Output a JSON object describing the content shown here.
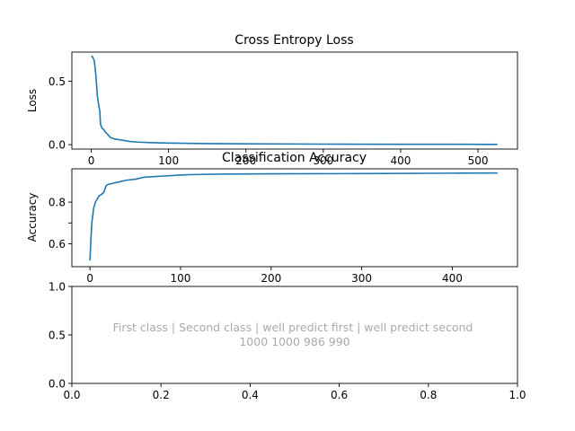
{
  "colors": {
    "line": "#1f77b4",
    "note": "#aaaaaa",
    "frame": "#000000"
  },
  "chart_data": [
    {
      "type": "line",
      "title": "Cross Entropy Loss",
      "xlabel": "",
      "ylabel": "Loss",
      "xlim": [
        -25,
        551
      ],
      "ylim": [
        -0.035,
        0.73
      ],
      "xticks": [
        0,
        100,
        200,
        300,
        400,
        500
      ],
      "yticks": [
        0.0,
        0.5
      ],
      "ytick_labels": [
        "0.0",
        "0.5"
      ],
      "grid": false,
      "series": [
        {
          "x": [
            0,
            2,
            4,
            6,
            8,
            10,
            11,
            12,
            14,
            16,
            18,
            20,
            25,
            30,
            35,
            40,
            45,
            50,
            60,
            80,
            100,
            150,
            200,
            300,
            400,
            525
          ],
          "y": [
            0.7,
            0.69,
            0.66,
            0.55,
            0.38,
            0.3,
            0.27,
            0.16,
            0.13,
            0.12,
            0.1,
            0.09,
            0.055,
            0.045,
            0.04,
            0.035,
            0.03,
            0.025,
            0.02,
            0.015,
            0.012,
            0.008,
            0.006,
            0.004,
            0.003,
            0.002
          ]
        }
      ]
    },
    {
      "type": "line",
      "title": "Classification Accuracy",
      "xlabel": "",
      "ylabel": "Accuracy",
      "xlim": [
        -20,
        472
      ],
      "ylim": [
        0.49,
        0.96
      ],
      "xticks": [
        0,
        100,
        200,
        300,
        400
      ],
      "yticks": [
        0.6,
        0.7,
        0.8
      ],
      "ytick_labels": [
        "0.6",
        "",
        "0.8"
      ],
      "grid": false,
      "series": [
        {
          "x": [
            0,
            1,
            2,
            4,
            6,
            8,
            10,
            12,
            15,
            18,
            20,
            25,
            30,
            40,
            50,
            55,
            60,
            80,
            100,
            110,
            150,
            200,
            300,
            400,
            450
          ],
          "y": [
            0.52,
            0.62,
            0.7,
            0.77,
            0.8,
            0.815,
            0.83,
            0.835,
            0.845,
            0.88,
            0.885,
            0.89,
            0.895,
            0.905,
            0.91,
            0.915,
            0.92,
            0.925,
            0.93,
            0.932,
            0.935,
            0.936,
            0.937,
            0.939,
            0.94
          ]
        }
      ]
    },
    {
      "type": "table",
      "title": "",
      "xlim": [
        0,
        1
      ],
      "ylim": [
        0,
        1
      ],
      "xticks": [
        0.0,
        0.2,
        0.4,
        0.6,
        0.8,
        1.0
      ],
      "xtick_labels": [
        "0.0",
        "0.2",
        "0.4",
        "0.6",
        "0.8",
        "1.0"
      ],
      "yticks": [
        0.0,
        0.5,
        1.0
      ],
      "ytick_labels": [
        "0.0",
        "0.5",
        "1.0"
      ],
      "text_lines": [
        "First class | Second class | well predict first | well predict second",
        "1000 1000 986 990"
      ]
    }
  ]
}
